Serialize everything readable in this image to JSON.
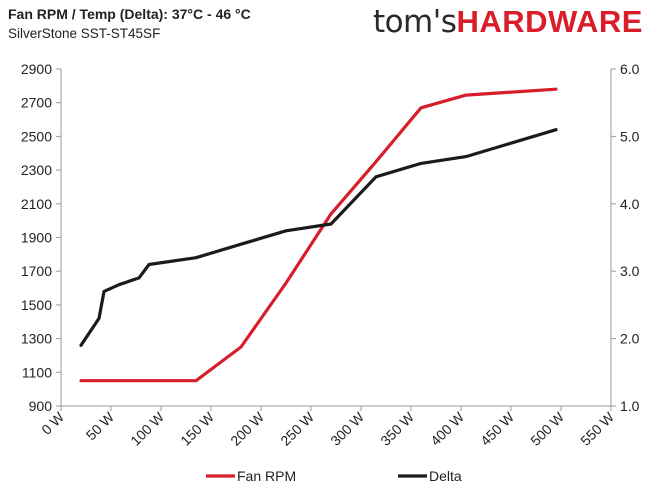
{
  "header": {
    "title": "Fan RPM / Temp (Delta): 37°C - 46 °C",
    "subtitle": "SilverStone SST-ST45SF",
    "logo_part1": "tom's",
    "logo_part2": "HARDWARE"
  },
  "colors": {
    "fan": "#d81e2a",
    "delta": "#1b1b1b",
    "axis": "#9a9a9a",
    "brand": "#d91d2a"
  },
  "chart_data": {
    "type": "line",
    "title": "Fan RPM / Temp (Delta): 37°C - 46 °C",
    "subtitle": "SilverStone SST-ST45SF",
    "grid": false,
    "legend_position": "bottom",
    "x_ticks": [
      "0 W",
      "50 W",
      "100 W",
      "150 W",
      "200 W",
      "250 W",
      "300 W",
      "350 W",
      "400 W",
      "450 W",
      "500 W",
      "550 W"
    ],
    "xlim": [
      0,
      550
    ],
    "y_left": {
      "lim": [
        900,
        2900
      ],
      "ticks": [
        "900",
        "1100",
        "1300",
        "1500",
        "1700",
        "1900",
        "2100",
        "2300",
        "2500",
        "2700",
        "2900"
      ]
    },
    "y_right": {
      "lim": [
        1.0,
        6.0
      ],
      "ticks": [
        "1.0",
        "2.0",
        "3.0",
        "4.0",
        "5.0",
        "6.0"
      ]
    },
    "series": [
      {
        "name": "Fan RPM",
        "axis": "left",
        "x": [
          20,
          45,
          90,
          135,
          180,
          225,
          270,
          315,
          360,
          405,
          495
        ],
        "y": [
          1050,
          1050,
          1050,
          1050,
          1250,
          1630,
          2040,
          2350,
          2670,
          2745,
          2780
        ]
      },
      {
        "name": "Delta",
        "axis": "right",
        "x": [
          20,
          38,
          43,
          58,
          78,
          88,
          135,
          180,
          225,
          270,
          315,
          360,
          405,
          495
        ],
        "y": [
          1.9,
          2.3,
          2.7,
          2.8,
          2.9,
          3.1,
          3.2,
          3.4,
          3.6,
          3.7,
          4.4,
          4.6,
          4.7,
          5.1
        ]
      }
    ]
  }
}
